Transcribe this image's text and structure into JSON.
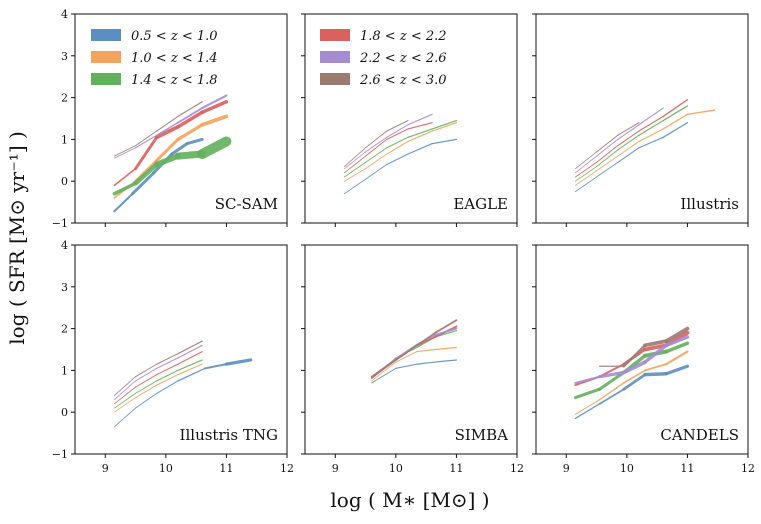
{
  "figure": {
    "xlabel": "log ( M∗  [M⊙] )",
    "ylabel": "log ( SFR [M⊙ yr⁻¹] )"
  },
  "chart_data": {
    "type": "line",
    "layout": "2x3 grid, shared axes",
    "xlim": [
      8.5,
      12
    ],
    "ylim": [
      -1,
      4
    ],
    "xticks": [
      "9",
      "10",
      "11",
      "12"
    ],
    "yticks": [
      "−1",
      "0",
      "1",
      "2",
      "3",
      "4"
    ],
    "grid": false,
    "legend": [
      {
        "label": "0.5 < z < 1.0",
        "color": "#5b8fbf"
      },
      {
        "label": "1.0 < z < 1.4",
        "color": "#f4a35b"
      },
      {
        "label": "1.4 < z < 1.8",
        "color": "#62b05c"
      },
      {
        "label": "1.8 < z < 2.2",
        "color": "#d9615f"
      },
      {
        "label": "2.2 < z < 2.6",
        "color": "#a58bd0"
      },
      {
        "label": "2.6 < z < 3.0",
        "color": "#9b7a70"
      }
    ],
    "panels": [
      {
        "label": "SC-SAM",
        "series": [
          {
            "name": "0.5 < z < 1.0",
            "x": [
              9.15,
              9.45,
              9.8,
              10.1,
              10.35,
              10.6
            ],
            "y": [
              -0.72,
              -0.3,
              0.2,
              0.65,
              0.9,
              1.0
            ],
            "width": [
              1.2,
              3,
              3,
              3,
              3,
              3
            ]
          },
          {
            "name": "1.0 < z < 1.4",
            "x": [
              9.15,
              9.5,
              9.85,
              10.2,
              10.6,
              11.0
            ],
            "y": [
              -0.4,
              0.0,
              0.5,
              1.0,
              1.35,
              1.55
            ],
            "width": [
              1.2,
              2.5,
              3,
              3,
              3.5,
              4
            ]
          },
          {
            "name": "1.4 < z < 1.8",
            "x": [
              9.15,
              9.5,
              9.85,
              10.2,
              10.6,
              11.0
            ],
            "y": [
              -0.3,
              -0.05,
              0.4,
              0.6,
              0.65,
              0.95
            ],
            "width": [
              3,
              4,
              5,
              6,
              8,
              12
            ]
          },
          {
            "name": "1.8 < z < 2.2",
            "x": [
              9.15,
              9.5,
              9.85,
              10.2,
              10.6,
              11.0
            ],
            "y": [
              -0.1,
              0.3,
              1.05,
              1.3,
              1.65,
              1.9
            ],
            "width": [
              1.2,
              2,
              4,
              3.5,
              3.5,
              3.5
            ]
          },
          {
            "name": "2.2 < z < 2.6",
            "x": [
              9.15,
              9.5,
              9.85,
              10.2,
              10.6,
              11.0
            ],
            "y": [
              0.55,
              0.8,
              1.1,
              1.4,
              1.75,
              2.05
            ],
            "width": [
              0.8,
              1,
              1.3,
              1.6,
              2,
              2.2
            ]
          },
          {
            "name": "2.6 < z < 3.0",
            "x": [
              9.15,
              9.5,
              9.85,
              10.2,
              10.6
            ],
            "y": [
              0.6,
              0.85,
              1.2,
              1.55,
              1.9
            ],
            "width": [
              0.8,
              0.9,
              1,
              1.1,
              1.2
            ]
          }
        ]
      },
      {
        "label": "EAGLE",
        "series": [
          {
            "name": "0.5 < z < 1.0",
            "x": [
              9.15,
              9.5,
              9.85,
              10.2,
              10.6,
              11.0
            ],
            "y": [
              -0.3,
              0.05,
              0.4,
              0.65,
              0.9,
              1.0
            ],
            "width": [
              0.8,
              0.9,
              1,
              1.1,
              1.2,
              1.3
            ]
          },
          {
            "name": "1.0 < z < 1.4",
            "x": [
              9.15,
              9.5,
              9.85,
              10.2,
              10.6,
              11.0
            ],
            "y": [
              0.0,
              0.3,
              0.65,
              0.95,
              1.2,
              1.4
            ],
            "width": [
              0.8,
              0.9,
              1,
              1.1,
              1.2,
              1.3
            ]
          },
          {
            "name": "1.4 < z < 1.8",
            "x": [
              9.15,
              9.5,
              9.85,
              10.2,
              10.6,
              11.0
            ],
            "y": [
              0.1,
              0.45,
              0.8,
              1.05,
              1.25,
              1.45
            ],
            "width": [
              0.8,
              0.9,
              1,
              1.1,
              1.2,
              1.3
            ]
          },
          {
            "name": "1.8 < z < 2.2",
            "x": [
              9.15,
              9.5,
              9.85,
              10.2,
              10.6
            ],
            "y": [
              0.2,
              0.6,
              1.0,
              1.25,
              1.4
            ],
            "width": [
              0.8,
              0.9,
              1,
              1.1,
              1.2
            ]
          },
          {
            "name": "2.2 < z < 2.6",
            "x": [
              9.15,
              9.5,
              9.85,
              10.2,
              10.6
            ],
            "y": [
              0.3,
              0.7,
              1.05,
              1.35,
              1.6
            ],
            "width": [
              0.8,
              0.9,
              1,
              1.1,
              1.2
            ]
          },
          {
            "name": "2.6 < z < 3.0",
            "x": [
              9.15,
              9.5,
              9.85,
              10.2
            ],
            "y": [
              0.35,
              0.8,
              1.2,
              1.45
            ],
            "width": [
              0.8,
              0.9,
              1,
              1.1
            ]
          }
        ]
      },
      {
        "label": "Illustris",
        "series": [
          {
            "name": "0.5 < z < 1.0",
            "x": [
              9.15,
              9.5,
              9.85,
              10.2,
              10.6,
              11.0
            ],
            "y": [
              -0.25,
              0.1,
              0.45,
              0.8,
              1.05,
              1.4
            ],
            "width": [
              0.8,
              0.9,
              1,
              1.1,
              1.2,
              1.3
            ]
          },
          {
            "name": "1.0 < z < 1.4",
            "x": [
              9.15,
              9.5,
              9.85,
              10.2,
              10.6,
              11.0,
              11.45
            ],
            "y": [
              -0.1,
              0.25,
              0.6,
              0.95,
              1.25,
              1.6,
              1.7
            ],
            "width": [
              0.8,
              0.9,
              1,
              1.1,
              1.2,
              1.3,
              1.6
            ]
          },
          {
            "name": "1.4 < z < 1.8",
            "x": [
              9.15,
              9.5,
              9.85,
              10.2,
              10.6,
              11.0
            ],
            "y": [
              0.0,
              0.35,
              0.75,
              1.1,
              1.45,
              1.8
            ],
            "width": [
              0.8,
              0.9,
              1,
              1.1,
              1.2,
              1.3
            ]
          },
          {
            "name": "1.8 < z < 2.2",
            "x": [
              9.15,
              9.5,
              9.85,
              10.2,
              10.6,
              11.0
            ],
            "y": [
              0.1,
              0.45,
              0.85,
              1.2,
              1.55,
              1.95
            ],
            "width": [
              0.8,
              0.9,
              1,
              1.1,
              1.2,
              1.6
            ]
          },
          {
            "name": "2.2 < z < 2.6",
            "x": [
              9.15,
              9.5,
              9.85,
              10.2,
              10.6
            ],
            "y": [
              0.2,
              0.6,
              1.0,
              1.35,
              1.75
            ],
            "width": [
              0.8,
              0.9,
              1,
              1.1,
              1.2
            ]
          },
          {
            "name": "2.6 < z < 3.0",
            "x": [
              9.15,
              9.5,
              9.85,
              10.2
            ],
            "y": [
              0.3,
              0.7,
              1.1,
              1.4
            ],
            "width": [
              0.8,
              0.9,
              1,
              1.1
            ]
          }
        ]
      },
      {
        "label": "Illustris TNG",
        "series": [
          {
            "name": "0.5 < z < 1.0",
            "x": [
              9.15,
              9.5,
              9.85,
              10.2,
              10.65,
              11.0,
              11.4
            ],
            "y": [
              -0.35,
              0.1,
              0.45,
              0.75,
              1.05,
              1.15,
              1.25
            ],
            "width": [
              0.8,
              0.9,
              1,
              1.1,
              1.5,
              2.5,
              4
            ]
          },
          {
            "name": "1.0 < z < 1.4",
            "x": [
              9.15,
              9.5,
              9.85,
              10.2,
              10.6
            ],
            "y": [
              0.0,
              0.35,
              0.65,
              0.9,
              1.15
            ],
            "width": [
              0.8,
              0.9,
              1,
              1.1,
              1.2
            ]
          },
          {
            "name": "1.4 < z < 1.8",
            "x": [
              9.15,
              9.5,
              9.85,
              10.2,
              10.6
            ],
            "y": [
              0.1,
              0.45,
              0.75,
              1.0,
              1.25
            ],
            "width": [
              0.8,
              0.9,
              1,
              1.1,
              1.2
            ]
          },
          {
            "name": "1.8 < z < 2.2",
            "x": [
              9.15,
              9.5,
              9.85,
              10.2,
              10.6
            ],
            "y": [
              0.2,
              0.6,
              0.9,
              1.15,
              1.45
            ],
            "width": [
              0.8,
              0.9,
              1,
              1.1,
              1.2
            ]
          },
          {
            "name": "2.2 < z < 2.6",
            "x": [
              9.15,
              9.5,
              9.85,
              10.2,
              10.6
            ],
            "y": [
              0.3,
              0.75,
              1.05,
              1.3,
              1.6
            ],
            "width": [
              0.8,
              0.9,
              1,
              1.1,
              1.2
            ]
          },
          {
            "name": "2.6 < z < 3.0",
            "x": [
              9.15,
              9.5,
              9.85,
              10.2,
              10.6
            ],
            "y": [
              0.4,
              0.85,
              1.15,
              1.4,
              1.7
            ],
            "width": [
              0.8,
              0.9,
              1,
              1.1,
              1.2
            ]
          }
        ]
      },
      {
        "label": "SIMBA",
        "series": [
          {
            "name": "0.5 < z < 1.0",
            "x": [
              9.6,
              10.0,
              10.35,
              10.65,
              11.0
            ],
            "y": [
              0.7,
              1.05,
              1.15,
              1.2,
              1.25
            ],
            "width": [
              0.9,
              1,
              1.1,
              1.2,
              1.3
            ]
          },
          {
            "name": "1.0 < z < 1.4",
            "x": [
              9.6,
              10.0,
              10.35,
              10.65,
              11.0
            ],
            "y": [
              0.75,
              1.2,
              1.45,
              1.5,
              1.55
            ],
            "width": [
              0.9,
              1,
              1.1,
              1.2,
              1.3
            ]
          },
          {
            "name": "1.4 < z < 1.8",
            "x": [
              9.6,
              10.0,
              10.35,
              10.65,
              11.0
            ],
            "y": [
              0.8,
              1.3,
              1.55,
              1.8,
              1.95
            ],
            "width": [
              0.9,
              1,
              1.1,
              1.2,
              1.3
            ]
          },
          {
            "name": "1.8 < z < 2.2",
            "x": [
              9.6,
              10.0,
              10.35,
              10.65,
              11.0
            ],
            "y": [
              0.82,
              1.25,
              1.6,
              1.8,
              2.05
            ],
            "width": [
              1.5,
              1.6,
              1.7,
              1.8,
              2
            ]
          },
          {
            "name": "2.2 < z < 2.6",
            "x": [
              9.6,
              10.0,
              10.35,
              10.65,
              11.0
            ],
            "y": [
              0.85,
              1.28,
              1.62,
              1.85,
              2.0
            ],
            "width": [
              1.4,
              1.5,
              1.6,
              1.8,
              2
            ]
          },
          {
            "name": "2.6 < z < 3.0",
            "x": [
              9.6,
              10.0,
              10.35,
              10.65,
              11.0
            ],
            "y": [
              0.85,
              1.25,
              1.6,
              1.9,
              2.2
            ],
            "width": [
              1.4,
              1.5,
              1.6,
              1.8,
              2
            ]
          }
        ]
      },
      {
        "label": "CANDELS",
        "series": [
          {
            "name": "0.5 < z < 1.0",
            "x": [
              9.15,
              9.55,
              9.95,
              10.3,
              10.65,
              11.0
            ],
            "y": [
              -0.15,
              0.2,
              0.55,
              0.9,
              0.92,
              1.1
            ],
            "width": [
              1,
              1.5,
              2,
              3.5,
              3.5,
              3
            ]
          },
          {
            "name": "1.0 < z < 1.4",
            "x": [
              9.15,
              9.55,
              9.95,
              10.3,
              10.65,
              11.0
            ],
            "y": [
              -0.05,
              0.3,
              0.7,
              1.0,
              1.15,
              1.45
            ],
            "width": [
              1,
              1.2,
              1.5,
              1.8,
              2,
              2.2
            ]
          },
          {
            "name": "1.4 < z < 1.8",
            "x": [
              9.15,
              9.55,
              9.95,
              10.3,
              10.65,
              11.0
            ],
            "y": [
              0.35,
              0.55,
              0.95,
              1.35,
              1.45,
              1.65
            ],
            "width": [
              3,
              3,
              3,
              4,
              4,
              3
            ]
          },
          {
            "name": "1.8 < z < 2.2",
            "x": [
              9.15,
              9.55,
              9.95,
              10.3,
              10.65,
              11.0
            ],
            "y": [
              0.65,
              0.85,
              1.15,
              1.5,
              1.6,
              1.9
            ],
            "width": [
              2,
              2,
              2,
              3.5,
              4,
              4
            ]
          },
          {
            "name": "2.2 < z < 2.6",
            "x": [
              9.15,
              9.55,
              9.95,
              10.3,
              10.65,
              11.0
            ],
            "y": [
              0.7,
              0.85,
              0.95,
              1.2,
              1.6,
              1.8
            ],
            "width": [
              1.5,
              2.5,
              4,
              3.5,
              3.5,
              3.5
            ]
          },
          {
            "name": "2.6 < z < 3.0",
            "x": [
              9.55,
              9.95,
              10.3,
              10.65,
              11.0
            ],
            "y": [
              1.1,
              1.1,
              1.6,
              1.7,
              2.0
            ],
            "width": [
              1,
              1.5,
              3.5,
              4,
              3.5
            ]
          }
        ]
      }
    ]
  }
}
